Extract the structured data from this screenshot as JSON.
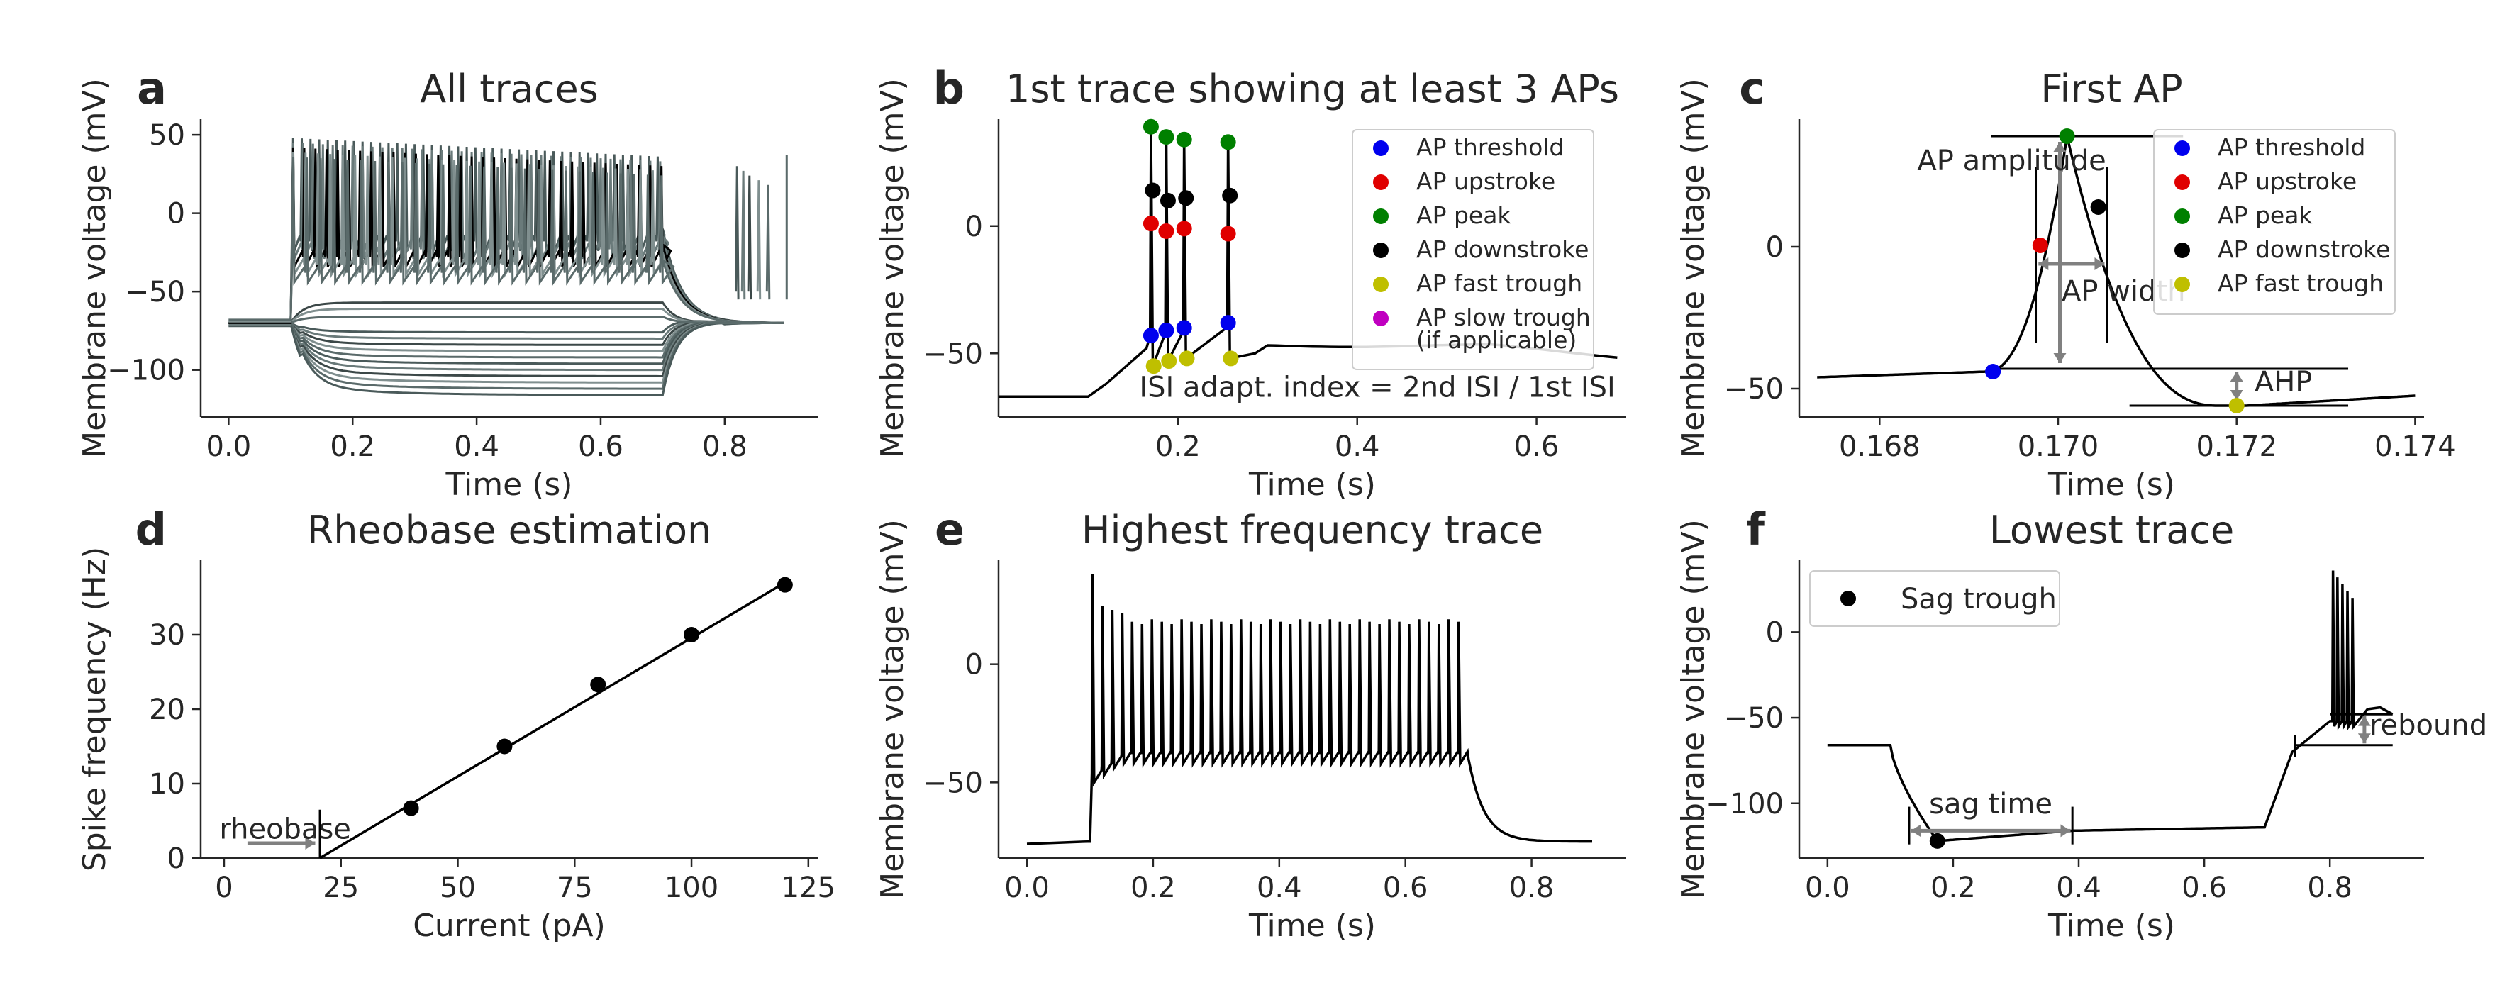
{
  "colors": {
    "trace": "#000000",
    "trace_gray": "#5f6f6f",
    "arrow": "#808080",
    "ap_threshold": "#0000ee",
    "ap_upstroke": "#e00000",
    "ap_peak": "#008000",
    "ap_downstroke": "#000000",
    "ap_fast_trough": "#bfbf00",
    "ap_slow_trough": "#c000c0"
  },
  "chart_data": [
    {
      "id": "a",
      "letter": "a",
      "type": "line",
      "title": "All traces",
      "xlabel": "Time (s)",
      "ylabel": "Membrane voltage (mV)",
      "xlim": [
        -0.045,
        0.95
      ],
      "ylim": [
        -130,
        60
      ],
      "xticks": [
        0.0,
        0.2,
        0.4,
        0.6,
        0.8
      ],
      "xtick_labels": [
        "0.0",
        "0.2",
        "0.4",
        "0.6",
        "0.8"
      ],
      "yticks": [
        -100,
        -50,
        0,
        50
      ],
      "ytick_labels": [
        "−100",
        "−50",
        "0",
        "50"
      ],
      "hyper_levels": [
        -76,
        -80,
        -84,
        -88,
        -92,
        -96,
        -100,
        -104,
        -108,
        -112,
        -116
      ],
      "depol_plateaus": [
        -10,
        -15,
        -20,
        -25,
        -30
      ],
      "sub_levels": [
        -57,
        -61,
        -66
      ]
    },
    {
      "id": "b",
      "letter": "b",
      "type": "line",
      "title": "1st trace showing at least 3 APs",
      "xlabel": "Time (s)",
      "ylabel": "Membrane voltage (mV)",
      "xlim": [
        0.0,
        0.7
      ],
      "ylim": [
        -75,
        42
      ],
      "xticks": [
        0.2,
        0.4,
        0.6
      ],
      "xtick_labels": [
        "0.2",
        "0.4",
        "0.6"
      ],
      "yticks": [
        -50,
        0
      ],
      "ytick_labels": [
        "−50",
        "0"
      ],
      "spikes": [
        {
          "t": 0.17,
          "threshold": -43,
          "upstroke": 1,
          "peak": 39,
          "downstroke": 14,
          "fast_trough": -55
        },
        {
          "t": 0.187,
          "threshold": -41,
          "upstroke": -2,
          "peak": 35,
          "downstroke": 10,
          "fast_trough": -53
        },
        {
          "t": 0.207,
          "threshold": -40,
          "upstroke": -1,
          "peak": 34,
          "downstroke": 11,
          "fast_trough": -52
        },
        {
          "t": 0.256,
          "threshold": -38,
          "upstroke": -3,
          "peak": 33,
          "downstroke": 12,
          "fast_trough": -52
        }
      ],
      "annotation": "ISI adapt. index = 2nd ISI / 1st ISI",
      "legend": {
        "position": "top-right",
        "entries": [
          {
            "label": "AP threshold",
            "color_key": "ap_threshold"
          },
          {
            "label": "AP upstroke",
            "color_key": "ap_upstroke"
          },
          {
            "label": "AP peak",
            "color_key": "ap_peak"
          },
          {
            "label": "AP downstroke",
            "color_key": "ap_downstroke"
          },
          {
            "label": "AP fast trough",
            "color_key": "ap_fast_trough"
          },
          {
            "label": "AP slow trough",
            "label2": "(if applicable)",
            "color_key": "ap_slow_trough"
          }
        ]
      }
    },
    {
      "id": "c",
      "letter": "c",
      "type": "line",
      "title": "First AP",
      "xlabel": "Time (s)",
      "ylabel": "Membrane voltage (mV)",
      "xlim": [
        0.1671,
        0.1741
      ],
      "ylim": [
        -60,
        45
      ],
      "xticks": [
        0.168,
        0.17,
        0.172,
        0.174
      ],
      "xtick_labels": [
        "0.168",
        "0.170",
        "0.172",
        "0.174"
      ],
      "yticks": [
        -50,
        0
      ],
      "ytick_labels": [
        "−50",
        "0"
      ],
      "points": {
        "threshold": [
          0.16927,
          -44
        ],
        "upstroke": [
          0.1698,
          0.5
        ],
        "peak": [
          0.1701,
          39
        ],
        "downstroke": [
          0.17045,
          14
        ],
        "fast_trough": [
          0.172,
          -56
        ]
      },
      "labels": {
        "amplitude": "AP amplitude",
        "width": "AP width",
        "ahp": "AHP"
      },
      "legend": {
        "position": "top-right",
        "entries": [
          {
            "label": "AP threshold",
            "color_key": "ap_threshold"
          },
          {
            "label": "AP upstroke",
            "color_key": "ap_upstroke"
          },
          {
            "label": "AP peak",
            "color_key": "ap_peak"
          },
          {
            "label": "AP downstroke",
            "color_key": "ap_downstroke"
          },
          {
            "label": "AP fast trough",
            "color_key": "ap_fast_trough"
          }
        ]
      }
    },
    {
      "id": "d",
      "letter": "d",
      "type": "scatter",
      "title": "Rheobase estimation",
      "xlabel": "Current (pA)",
      "ylabel": "Spike frequency (Hz)",
      "xlim": [
        -5,
        127
      ],
      "ylim": [
        0,
        40
      ],
      "xticks": [
        0,
        25,
        50,
        75,
        100,
        125
      ],
      "xtick_labels": [
        "0",
        "25",
        "50",
        "75",
        "100",
        "125"
      ],
      "yticks": [
        0,
        10,
        20,
        30
      ],
      "ytick_labels": [
        "0",
        "10",
        "20",
        "30"
      ],
      "x": [
        40,
        60,
        80,
        100,
        120
      ],
      "y": [
        6.7,
        15,
        23.3,
        30,
        36.7
      ],
      "fit_line": {
        "x": [
          20.5,
          120
        ],
        "y": [
          0,
          37
        ]
      },
      "rheobase": 20.5,
      "labels": {
        "rheobase": "rheobase"
      }
    },
    {
      "id": "e",
      "letter": "e",
      "type": "line",
      "title": "Highest frequency trace",
      "xlabel": "Time (s)",
      "ylabel": "Membrane voltage (mV)",
      "xlim": [
        -0.045,
        0.95
      ],
      "ylim": [
        -82,
        44
      ],
      "xticks": [
        0.0,
        0.2,
        0.4,
        0.6,
        0.8
      ],
      "xtick_labels": [
        "0.0",
        "0.2",
        "0.4",
        "0.6",
        "0.8"
      ],
      "yticks": [
        -50,
        0
      ],
      "ytick_labels": [
        "−50",
        "0"
      ],
      "spike_count": 38,
      "stim_on": 0.1,
      "stim_off": 0.7,
      "rest": -76
    },
    {
      "id": "f",
      "letter": "f",
      "type": "line",
      "title": "Lowest trace",
      "xlabel": "Time (s)",
      "ylabel": "Membrane voltage (mV)",
      "xlim": [
        -0.045,
        0.95
      ],
      "ylim": [
        -132,
        42
      ],
      "xticks": [
        0.0,
        0.2,
        0.4,
        0.6,
        0.8
      ],
      "xtick_labels": [
        "0.0",
        "0.2",
        "0.4",
        "0.6",
        "0.8"
      ],
      "yticks": [
        -100,
        -50,
        0
      ],
      "ytick_labels": [
        "−100",
        "−50",
        "0"
      ],
      "sag_trough": [
        0.175,
        -122
      ],
      "sag_window": [
        0.13,
        0.39
      ],
      "rebound_level": [
        -48,
        -66
      ],
      "labels": {
        "sag_time": "sag time",
        "rebound": "rebound"
      },
      "legend": {
        "position": "top-left",
        "entries": [
          {
            "label": "Sag trough",
            "color_key": "trace"
          }
        ]
      }
    }
  ]
}
